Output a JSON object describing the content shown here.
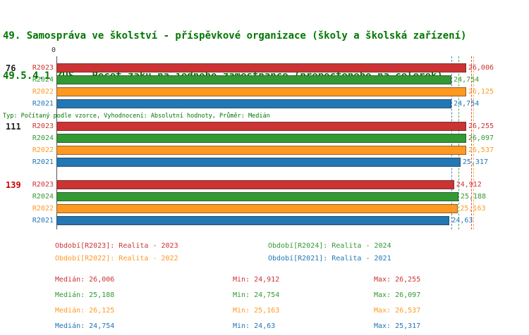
{
  "header": {
    "title_line1": "49. Samospráva ve školství - příspěvkové organizace (školy a školská zařízení)",
    "title_line2": "49.5.4.1 ZUŠ - Počet žáků na jednoho zaměstnance (přepočteného na celorok)",
    "meta_line": "Typ: Počítaný podle vzorce, Vyhodnocení: Absolutní hodnoty, Průměr: Medián",
    "title_color": "#007700"
  },
  "chart_data": {
    "type": "bar",
    "orientation": "horizontal",
    "categories": [
      "76",
      "111",
      "139"
    ],
    "series_order": [
      "R2023",
      "R2024",
      "R2022",
      "R2021"
    ],
    "x_axis": {
      "min": 0,
      "max": 27.4,
      "origin_label": "0"
    },
    "groups": [
      {
        "label": "76",
        "label_color": "#222222",
        "bars": [
          {
            "series": "R2023",
            "color": "#cc3333",
            "value": 26.006,
            "display": "26,006"
          },
          {
            "series": "R2024",
            "color": "#339933",
            "value": 24.754,
            "display": "24,754"
          },
          {
            "series": "R2022",
            "color": "#ff9922",
            "value": 26.125,
            "display": "26,125"
          },
          {
            "series": "R2021",
            "color": "#2277b5",
            "value": 24.754,
            "display": "24,754"
          }
        ]
      },
      {
        "label": "111",
        "label_color": "#222222",
        "bars": [
          {
            "series": "R2023",
            "color": "#cc3333",
            "value": 26.255,
            "display": "26,255"
          },
          {
            "series": "R2024",
            "color": "#339933",
            "value": 26.097,
            "display": "26,097"
          },
          {
            "series": "R2022",
            "color": "#ff9922",
            "value": 26.537,
            "display": "26,537"
          },
          {
            "series": "R2021",
            "color": "#2277b5",
            "value": 25.317,
            "display": "25,317"
          }
        ]
      },
      {
        "label": "139",
        "label_color": "#cc0000",
        "bars": [
          {
            "series": "R2023",
            "color": "#cc3333",
            "value": 24.912,
            "display": "24,912"
          },
          {
            "series": "R2024",
            "color": "#339933",
            "value": 25.188,
            "display": "25,188"
          },
          {
            "series": "R2022",
            "color": "#ff9922",
            "value": 25.163,
            "display": "25,163"
          },
          {
            "series": "R2021",
            "color": "#2277b5",
            "value": 24.63,
            "display": "24,63"
          }
        ]
      }
    ],
    "medians": [
      {
        "series": "R2023",
        "value": 26.006,
        "color": "#cc3333"
      },
      {
        "series": "R2024",
        "value": 25.188,
        "color": "#339933"
      },
      {
        "series": "R2022",
        "value": 26.125,
        "color": "#ff9922"
      },
      {
        "series": "R2021",
        "value": 24.754,
        "color": "#2277b5"
      }
    ]
  },
  "legend": {
    "items": [
      {
        "label": "Období[R2023]:",
        "value": "Realita - 2023",
        "color": "#cc3333"
      },
      {
        "label": "Období[R2024]:",
        "value": "Realita - 2024",
        "color": "#339933"
      },
      {
        "label": "Období[R2022]:",
        "value": "Realita - 2022",
        "color": "#ff9922"
      },
      {
        "label": "Období[R2021]:",
        "value": "Realita - 2021",
        "color": "#2277b5"
      }
    ]
  },
  "stats": {
    "median_label": "Medián:",
    "min_label": "Min:",
    "max_label": "Max:",
    "rows": [
      {
        "series": "R2023",
        "color": "#cc3333",
        "median": "26,006",
        "min": "24,912",
        "max": "26,255"
      },
      {
        "series": "R2024",
        "color": "#339933",
        "median": "25,188",
        "min": "24,754",
        "max": "26,097"
      },
      {
        "series": "R2022",
        "color": "#ff9922",
        "median": "26,125",
        "min": "25,163",
        "max": "26,537"
      },
      {
        "series": "R2021",
        "color": "#2277b5",
        "median": "24,754",
        "min": "24,63",
        "max": "25,317"
      }
    ]
  }
}
